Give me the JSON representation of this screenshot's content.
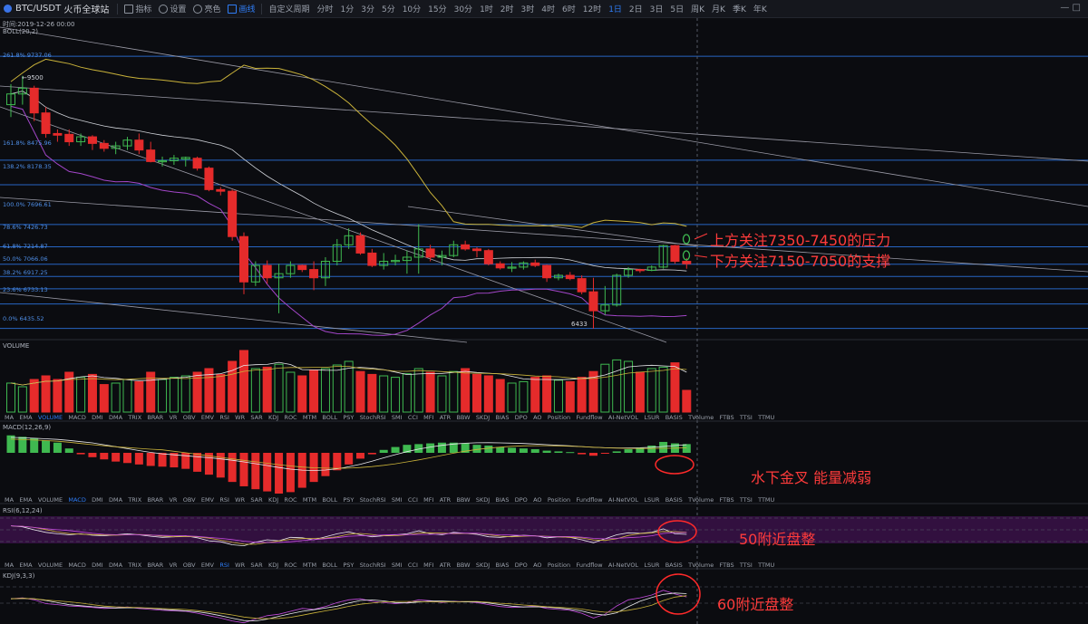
{
  "toolbar": {
    "pair": "BTC/USDT",
    "exchange": "火币全球站",
    "buttons": [
      {
        "label": "指标",
        "icon": "indicator-icon"
      },
      {
        "label": "设置",
        "icon": "gear-icon"
      },
      {
        "label": "亮色",
        "icon": "sun-icon"
      },
      {
        "label": "画线",
        "icon": "draw-line-icon",
        "active": true
      }
    ],
    "custom_period": "自定义周期",
    "timeframes": [
      "分时",
      "1分",
      "3分",
      "5分",
      "10分",
      "15分",
      "30分",
      "1时",
      "2时",
      "3时",
      "4时",
      "6时",
      "12时",
      "1日",
      "2日",
      "3日",
      "5日",
      "周K",
      "月K",
      "季K",
      "年K"
    ],
    "active_timeframe": "1日",
    "window_controls": "— □"
  },
  "main": {
    "time_label": "时间:2019-12-26 00:00",
    "boll_label": "BOLL(20,2)",
    "fib_levels": [
      {
        "label": "261.8% 9737.06"
      },
      {
        "label": "161.8% 8475.96"
      },
      {
        "label": "138.2% 8178.35"
      },
      {
        "label": "100.0% 7696.61"
      },
      {
        "label": "78.6% 7426.73"
      },
      {
        "label": "61.8% 7214.87"
      },
      {
        "label": "50.0% 7066.06"
      },
      {
        "label": "38.2% 6917.25"
      },
      {
        "label": "23.6% 6733.13"
      },
      {
        "label": "0.0% 6435.52"
      }
    ],
    "high_marker": "←9500",
    "low_marker": "6433",
    "annotations": [
      "上方关注7350-7450的压力",
      "下方关注7150-7050的支撑"
    ]
  },
  "volume_panel": {
    "label": "VOLUME"
  },
  "macd_panel": {
    "label": "MACD(12,26,9)",
    "annotation": "水下金叉  能量减弱"
  },
  "rsi_panel": {
    "label": "RSI(6,12,24)",
    "annotation": "50附近盘整"
  },
  "kdj_panel": {
    "label": "KDJ(9,3,3)",
    "annotation": "60附近盘整"
  },
  "indicator_tabs": [
    "MA",
    "EMA",
    "VOLUME",
    "MACD",
    "DMI",
    "DMA",
    "TRIX",
    "BRAR",
    "VR",
    "OBV",
    "EMV",
    "RSI",
    "WR",
    "SAR",
    "KDJ",
    "ROC",
    "MTM",
    "BOLL",
    "PSY",
    "StochRSI",
    "SMI",
    "CCI",
    "MFI",
    "ATR",
    "BBW",
    "SKDJ",
    "BIAS",
    "DPO",
    "AO",
    "Position",
    "Fundflow",
    "AI-NetVOL",
    "LSUR",
    "BASIS",
    "TVolume",
    "FTBS",
    "TTSI",
    "TTMU"
  ],
  "indicator_rows_active": [
    "VOLUME",
    "MACD",
    "RSI"
  ],
  "colors": {
    "up": "#3fb950",
    "down": "#e52b2b",
    "fib": "#2b6fd6",
    "annotation": "#ff3b3b",
    "background": "#0b0c10"
  },
  "chart_data": {
    "type": "candlestick",
    "title": "BTC/USDT 1日",
    "price_range_visible": [
      6300,
      10200
    ],
    "candles": [
      {
        "o": 9150,
        "h": 9400,
        "l": 9000,
        "c": 9280
      },
      {
        "o": 9280,
        "h": 9500,
        "l": 9150,
        "c": 9350
      },
      {
        "o": 9350,
        "h": 9380,
        "l": 8950,
        "c": 9050
      },
      {
        "o": 9050,
        "h": 9120,
        "l": 8750,
        "c": 8800
      },
      {
        "o": 8800,
        "h": 8850,
        "l": 8700,
        "c": 8780
      },
      {
        "o": 8790,
        "h": 8850,
        "l": 8650,
        "c": 8700
      },
      {
        "o": 8700,
        "h": 8800,
        "l": 8650,
        "c": 8760
      },
      {
        "o": 8760,
        "h": 8780,
        "l": 8600,
        "c": 8680
      },
      {
        "o": 8680,
        "h": 8720,
        "l": 8580,
        "c": 8620
      },
      {
        "o": 8620,
        "h": 8700,
        "l": 8550,
        "c": 8650
      },
      {
        "o": 8650,
        "h": 8760,
        "l": 8600,
        "c": 8720
      },
      {
        "o": 8720,
        "h": 8800,
        "l": 8550,
        "c": 8600
      },
      {
        "o": 8600,
        "h": 8700,
        "l": 8450,
        "c": 8460
      },
      {
        "o": 8460,
        "h": 8520,
        "l": 8400,
        "c": 8470
      },
      {
        "o": 8470,
        "h": 8540,
        "l": 8420,
        "c": 8500
      },
      {
        "o": 8490,
        "h": 8520,
        "l": 8400,
        "c": 8510
      },
      {
        "o": 8500,
        "h": 8520,
        "l": 8350,
        "c": 8380
      },
      {
        "o": 8380,
        "h": 8400,
        "l": 8100,
        "c": 8120
      },
      {
        "o": 8120,
        "h": 8150,
        "l": 8050,
        "c": 8100
      },
      {
        "o": 8100,
        "h": 8120,
        "l": 7500,
        "c": 7550
      },
      {
        "o": 7550,
        "h": 7600,
        "l": 6850,
        "c": 7000
      },
      {
        "o": 7000,
        "h": 7250,
        "l": 6950,
        "c": 7200
      },
      {
        "o": 7200,
        "h": 7260,
        "l": 6980,
        "c": 7050
      },
      {
        "o": 7050,
        "h": 7220,
        "l": 6620,
        "c": 7100
      },
      {
        "o": 7100,
        "h": 7250,
        "l": 7050,
        "c": 7200
      },
      {
        "o": 7200,
        "h": 7210,
        "l": 7120,
        "c": 7150
      },
      {
        "o": 7150,
        "h": 7250,
        "l": 6900,
        "c": 7050
      },
      {
        "o": 7050,
        "h": 7300,
        "l": 6950,
        "c": 7250
      },
      {
        "o": 7250,
        "h": 7520,
        "l": 7200,
        "c": 7450
      },
      {
        "o": 7450,
        "h": 7650,
        "l": 7400,
        "c": 7560
      },
      {
        "o": 7560,
        "h": 7600,
        "l": 7330,
        "c": 7350
      },
      {
        "o": 7350,
        "h": 7400,
        "l": 7180,
        "c": 7200
      },
      {
        "o": 7200,
        "h": 7350,
        "l": 7150,
        "c": 7250
      },
      {
        "o": 7250,
        "h": 7330,
        "l": 7200,
        "c": 7260
      },
      {
        "o": 7260,
        "h": 7380,
        "l": 7100,
        "c": 7300
      },
      {
        "o": 7300,
        "h": 7700,
        "l": 7100,
        "c": 7400
      },
      {
        "o": 7400,
        "h": 7450,
        "l": 7250,
        "c": 7300
      },
      {
        "o": 7300,
        "h": 7380,
        "l": 7200,
        "c": 7320
      },
      {
        "o": 7320,
        "h": 7500,
        "l": 7300,
        "c": 7450
      },
      {
        "o": 7450,
        "h": 7500,
        "l": 7380,
        "c": 7400
      },
      {
        "o": 7400,
        "h": 7420,
        "l": 7300,
        "c": 7380
      },
      {
        "o": 7380,
        "h": 7400,
        "l": 7200,
        "c": 7220
      },
      {
        "o": 7220,
        "h": 7250,
        "l": 7150,
        "c": 7170
      },
      {
        "o": 7170,
        "h": 7240,
        "l": 7120,
        "c": 7180
      },
      {
        "o": 7180,
        "h": 7250,
        "l": 7150,
        "c": 7230
      },
      {
        "o": 7230,
        "h": 7270,
        "l": 7180,
        "c": 7200
      },
      {
        "o": 7200,
        "h": 7210,
        "l": 7000,
        "c": 7050
      },
      {
        "o": 7050,
        "h": 7100,
        "l": 7020,
        "c": 7080
      },
      {
        "o": 7080,
        "h": 7120,
        "l": 7020,
        "c": 7040
      },
      {
        "o": 7040,
        "h": 7080,
        "l": 6850,
        "c": 6880
      },
      {
        "o": 6880,
        "h": 7050,
        "l": 6433,
        "c": 6650
      },
      {
        "o": 6650,
        "h": 6950,
        "l": 6600,
        "c": 6720
      },
      {
        "o": 6720,
        "h": 7100,
        "l": 6700,
        "c": 7080
      },
      {
        "o": 7080,
        "h": 7180,
        "l": 7050,
        "c": 7150
      },
      {
        "o": 7150,
        "h": 7160,
        "l": 7110,
        "c": 7140
      },
      {
        "o": 7140,
        "h": 7200,
        "l": 7130,
        "c": 7180
      },
      {
        "o": 7180,
        "h": 7450,
        "l": 7160,
        "c": 7440
      },
      {
        "o": 7440,
        "h": 7450,
        "l": 7220,
        "c": 7250
      },
      {
        "o": 7250,
        "h": 7290,
        "l": 7160,
        "c": 7220
      }
    ],
    "volume": [
      40,
      35,
      45,
      50,
      45,
      55,
      48,
      52,
      38,
      40,
      45,
      42,
      55,
      45,
      48,
      50,
      55,
      60,
      52,
      70,
      85,
      60,
      62,
      66,
      55,
      50,
      58,
      60,
      65,
      70,
      56,
      52,
      50,
      48,
      53,
      60,
      55,
      50,
      56,
      60,
      52,
      50,
      45,
      40,
      42,
      48,
      50,
      44,
      42,
      48,
      56,
      66,
      72,
      70,
      55,
      60,
      62,
      68,
      30
    ],
    "macd_hist": [
      120,
      110,
      100,
      85,
      70,
      30,
      -10,
      -30,
      -45,
      -60,
      -70,
      -80,
      -90,
      -95,
      -100,
      -110,
      -130,
      -150,
      -170,
      -200,
      -230,
      -250,
      -265,
      -280,
      -270,
      -240,
      -200,
      -160,
      -120,
      -80,
      -40,
      -10,
      20,
      40,
      55,
      60,
      65,
      70,
      70,
      65,
      55,
      50,
      40,
      35,
      30,
      25,
      15,
      10,
      5,
      -10,
      -20,
      -5,
      10,
      25,
      35,
      50,
      75,
      65,
      60
    ],
    "rsi": [
      68,
      66,
      60,
      55,
      52,
      50,
      52,
      49,
      48,
      50,
      52,
      50,
      47,
      45,
      46,
      48,
      44,
      38,
      36,
      30,
      28,
      35,
      40,
      38,
      45,
      44,
      40,
      46,
      52,
      56,
      50,
      46,
      48,
      50,
      52,
      58,
      52,
      50,
      55,
      53,
      51,
      46,
      45,
      47,
      49,
      48,
      44,
      46,
      45,
      40,
      34,
      42,
      50,
      54,
      53,
      55,
      62,
      52,
      51
    ],
    "kdj_j": [
      60,
      62,
      58,
      50,
      48,
      45,
      44,
      42,
      40,
      41,
      43,
      40,
      38,
      36,
      35,
      34,
      30,
      25,
      20,
      14,
      10,
      18,
      25,
      28,
      34,
      40,
      38,
      44,
      52,
      58,
      60,
      55,
      52,
      50,
      52,
      58,
      56,
      52,
      55,
      54,
      52,
      48,
      44,
      42,
      43,
      45,
      40,
      38,
      36,
      30,
      20,
      28,
      45,
      58,
      62,
      68,
      78,
      70,
      64
    ]
  }
}
